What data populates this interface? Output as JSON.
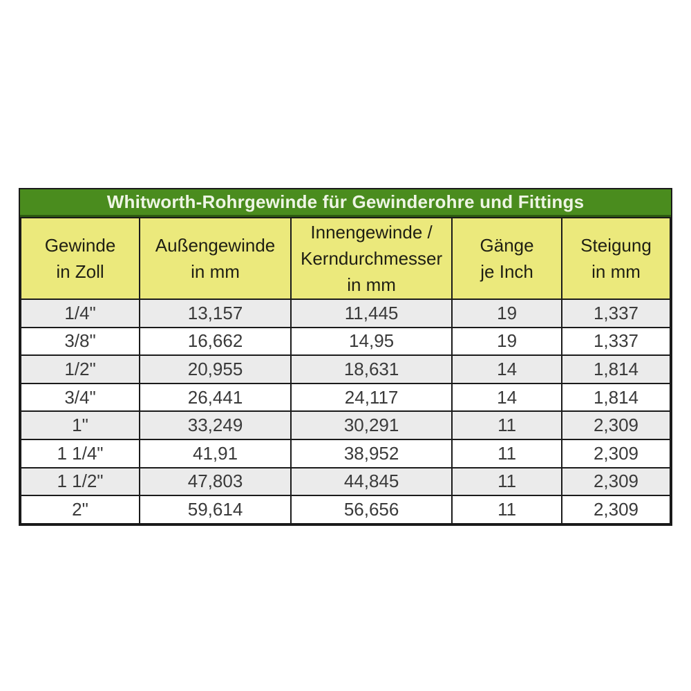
{
  "table": {
    "title": "Whitworth-Rohrgewinde für Gewinderohre und Fittings",
    "columns": [
      "Gewinde\nin Zoll",
      "Außengewinde\nin mm",
      "Innengewinde /\nKerndurchmesser\nin mm",
      "Gänge\nje Inch",
      "Steigung\nin mm"
    ],
    "rows": [
      [
        "1/4\"",
        "13,157",
        "11,445",
        "19",
        "1,337"
      ],
      [
        "3/8\"",
        "16,662",
        "14,95",
        "19",
        "1,337"
      ],
      [
        "1/2\"",
        "20,955",
        "18,631",
        "14",
        "1,814"
      ],
      [
        "3/4\"",
        "26,441",
        "24,117",
        "14",
        "1,814"
      ],
      [
        "1\"",
        "33,249",
        "30,291",
        "11",
        "2,309"
      ],
      [
        "1 1/4\"",
        "41,91",
        "38,952",
        "11",
        "2,309"
      ],
      [
        "1 1/2\"",
        "47,803",
        "44,845",
        "11",
        "2,309"
      ],
      [
        "2\"",
        "59,614",
        "56,656",
        "11",
        "2,309"
      ]
    ],
    "colors": {
      "title_bg": "#4a8c1e",
      "title_text": "#eef5e4",
      "header_bg": "#ebe97c",
      "row_shade": "#ebebeb",
      "row_plain": "#ffffff",
      "border": "#1a1a1a"
    }
  }
}
